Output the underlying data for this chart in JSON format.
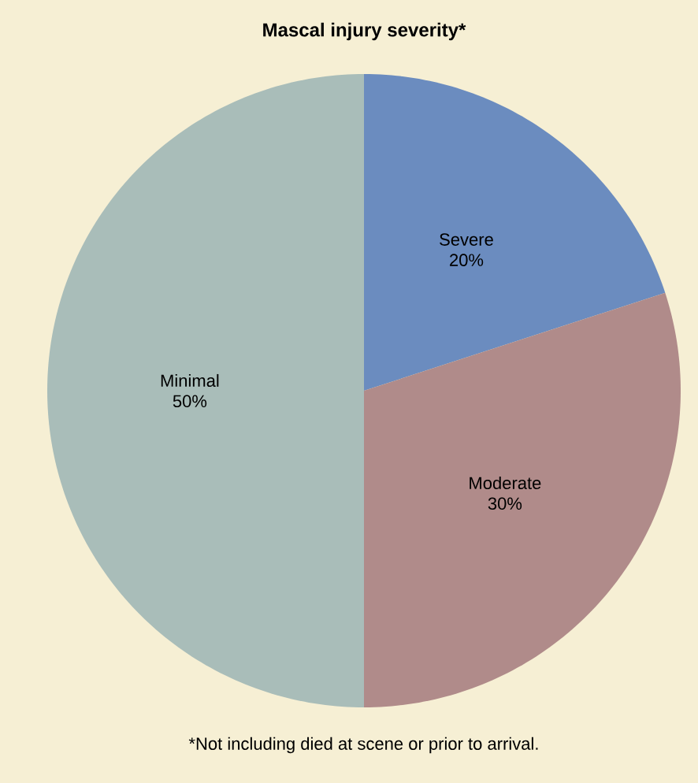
{
  "chart_data": {
    "type": "pie",
    "title": "Mascal injury severity*",
    "categories": [
      "Severe",
      "Moderate",
      "Minimal"
    ],
    "values": [
      20,
      30,
      50
    ],
    "value_labels": [
      "20%",
      "30%",
      "50%"
    ],
    "colors": [
      "#6b8cbf",
      "#b08b8a",
      "#a9bdb9"
    ],
    "annotations": [
      "*Not including died at scene or prior to arrival."
    ]
  }
}
